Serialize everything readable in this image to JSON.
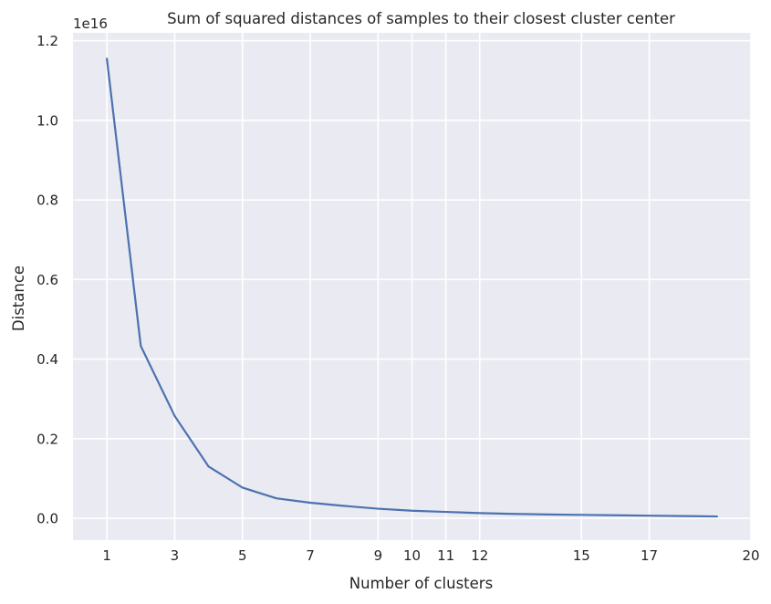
{
  "chart_data": {
    "type": "line",
    "title": "Sum of squared distances of samples to their closest cluster center",
    "xlabel": "Number of clusters",
    "ylabel": "Distance",
    "y_offset_label": "1e16",
    "xlim": [
      0.0,
      20.0
    ],
    "ylim": [
      -0.055,
      1.22
    ],
    "x_ticks": [
      1,
      3,
      5,
      7,
      9,
      10,
      11,
      12,
      15,
      17,
      20
    ],
    "y_ticks": [
      0.0,
      0.2,
      0.4,
      0.6,
      0.8,
      1.0,
      1.2
    ],
    "y_tick_labels": [
      "0.0",
      "0.2",
      "0.4",
      "0.6",
      "0.8",
      "1.0",
      "1.2"
    ],
    "grid": true,
    "series": [
      {
        "color": "#4c72b0",
        "x": [
          1,
          2,
          3,
          4,
          5,
          6,
          7,
          8,
          9,
          10,
          11,
          12,
          13,
          14,
          15,
          16,
          17,
          18,
          19
        ],
        "values": [
          1.155,
          0.433,
          0.257,
          0.13,
          0.077,
          0.05,
          0.039,
          0.031,
          0.024,
          0.019,
          0.016,
          0.013,
          0.011,
          0.0095,
          0.0085,
          0.0075,
          0.0065,
          0.0055,
          0.0045
        ]
      }
    ]
  }
}
